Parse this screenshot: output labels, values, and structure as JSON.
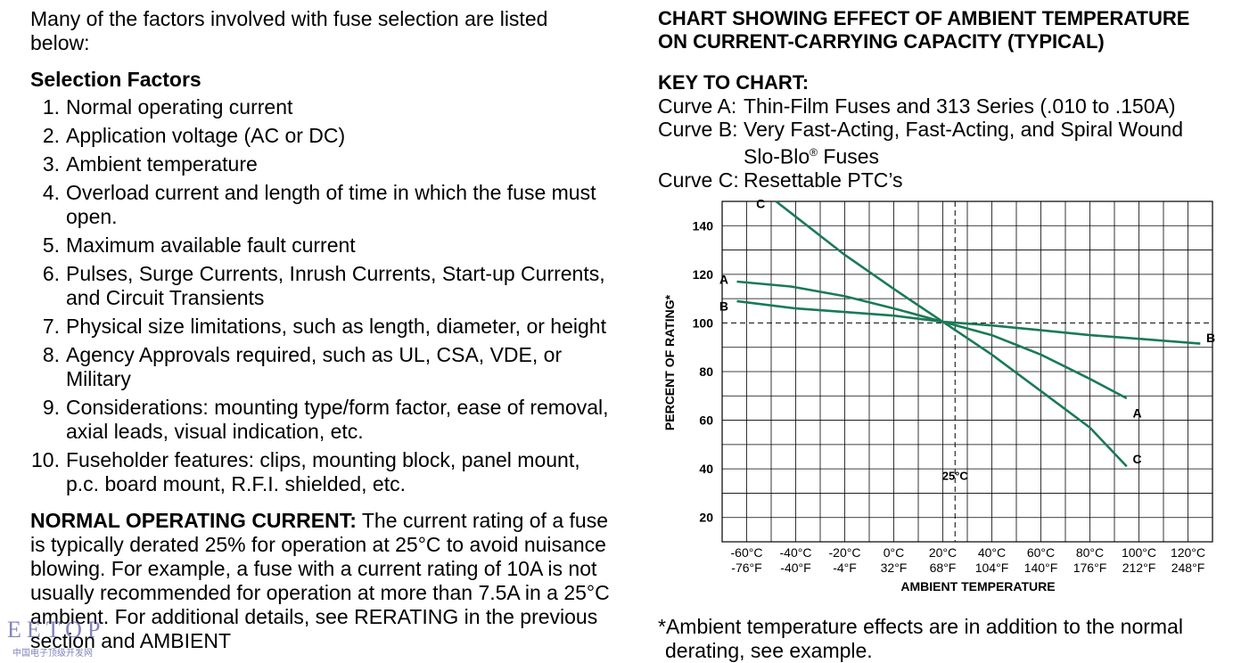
{
  "left": {
    "intro": "Many of the factors involved with fuse selection are listed below:",
    "selection_heading": "Selection Factors",
    "factors": [
      {
        "num": "1.",
        "text": "Normal operating current"
      },
      {
        "num": "2.",
        "text": "Application voltage (AC or DC)"
      },
      {
        "num": "3.",
        "text": "Ambient temperature"
      },
      {
        "num": "4.",
        "text": "Overload current and length of time in which the fuse must open."
      },
      {
        "num": "5.",
        "text": "Maximum available fault current"
      },
      {
        "num": "6.",
        "text": "Pulses, Surge Currents, Inrush Currents, Start-up Currents, and Circuit Transients"
      },
      {
        "num": "7.",
        "text": "Physical size limitations, such as length, diameter, or height"
      },
      {
        "num": "8.",
        "text": "Agency Approvals required, such as UL, CSA, VDE, or Military"
      },
      {
        "num": "9.",
        "text": "Considerations: mounting type/form factor, ease of removal, axial leads, visual indication, etc."
      },
      {
        "num": "10.",
        "text": "Fuseholder features: clips, mounting block, panel mount, p.c. board mount, R.F.I. shielded, etc."
      }
    ],
    "normal_heading": "NORMAL OPERATING CURRENT:",
    "normal_text": " The current rating of a fuse is typically derated 25% for operation at 25°C to avoid nuisance blowing. For example, a fuse with a current rating of 10A is not usually recommended for operation at more than 7.5A in a 25°C ambient. For additional details, see RERATING in the previous section and AMBIENT"
  },
  "right": {
    "title_line1": "CHART SHOWING EFFECT OF AMBIENT TEMPERATURE",
    "title_line2": "ON CURRENT-CARRYING CAPACITY (TYPICAL)",
    "key_heading": "KEY TO CHART:",
    "curve_a_label": "Curve A:",
    "curve_a_text": "Thin-Film Fuses and 313 Series (.010 to .150A)",
    "curve_b_label": "Curve B:",
    "curve_b_text_1": "Very Fast-Acting, Fast-Acting, and Spiral Wound",
    "curve_b_text_2": "Slo-Blo",
    "curve_b_reg": "®",
    "curve_b_text_3": " Fuses",
    "curve_c_label": "Curve C:",
    "curve_c_text": "Resettable PTC’s",
    "footnote_1": "*Ambient temperature effects are in addition to the normal",
    "footnote_2": "derating, see example."
  },
  "chart_data": {
    "type": "line",
    "xlabel": "AMBIENT TEMPERATURE",
    "ylabel": "PERCENT OF RATING*",
    "xlim": [
      -70,
      130
    ],
    "ylim": [
      10,
      150
    ],
    "x_ticks_c": [
      "-60°C",
      "-40°C",
      "-20°C",
      "0°C",
      "20°C",
      "40°C",
      "60°C",
      "80°C",
      "100°C",
      "120°C"
    ],
    "x_ticks_f": [
      "-76°F",
      "-40°F",
      "-4°F",
      "32°F",
      "68°F",
      "104°F",
      "140°F",
      "176°F",
      "212°F",
      "248°F"
    ],
    "x_tick_values": [
      -60,
      -40,
      -20,
      0,
      20,
      40,
      60,
      80,
      100,
      120
    ],
    "y_ticks": [
      20,
      40,
      60,
      80,
      100,
      120,
      140
    ],
    "reference_x": 25,
    "reference_x_label": "25°C",
    "reference_y": 100,
    "line_color": "#1a7a56",
    "series": [
      {
        "name": "A",
        "points": [
          [
            -64,
            117
          ],
          [
            -42,
            115
          ],
          [
            -20,
            111
          ],
          [
            0,
            106
          ],
          [
            20,
            100.5
          ],
          [
            40,
            95
          ],
          [
            60,
            87
          ],
          [
            80,
            77
          ],
          [
            95,
            69
          ]
        ]
      },
      {
        "name": "B",
        "points": [
          [
            -64,
            109
          ],
          [
            -40,
            106
          ],
          [
            0,
            103
          ],
          [
            20,
            100.5
          ],
          [
            40,
            99
          ],
          [
            60,
            97
          ],
          [
            80,
            95
          ],
          [
            100,
            93.5
          ],
          [
            125,
            91.5
          ]
        ]
      },
      {
        "name": "C",
        "points": [
          [
            -48,
            150
          ],
          [
            -20,
            128
          ],
          [
            0,
            114
          ],
          [
            20,
            100.5
          ],
          [
            40,
            87
          ],
          [
            60,
            72
          ],
          [
            80,
            57
          ],
          [
            95,
            41
          ]
        ]
      }
    ]
  },
  "watermark": "EETOP",
  "watermark_sub": "中国电子顶级开发网"
}
